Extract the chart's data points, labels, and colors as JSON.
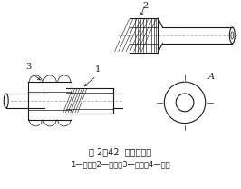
{
  "title_line1": "图 2－42  活接头连接",
  "title_line2": "1—公口；2—母口；3—套母；4—垫圈",
  "bg_color": "#ffffff",
  "line_color": "#1a1a1a",
  "label1": "1",
  "label2": "2",
  "label3": "3",
  "label4": "A"
}
